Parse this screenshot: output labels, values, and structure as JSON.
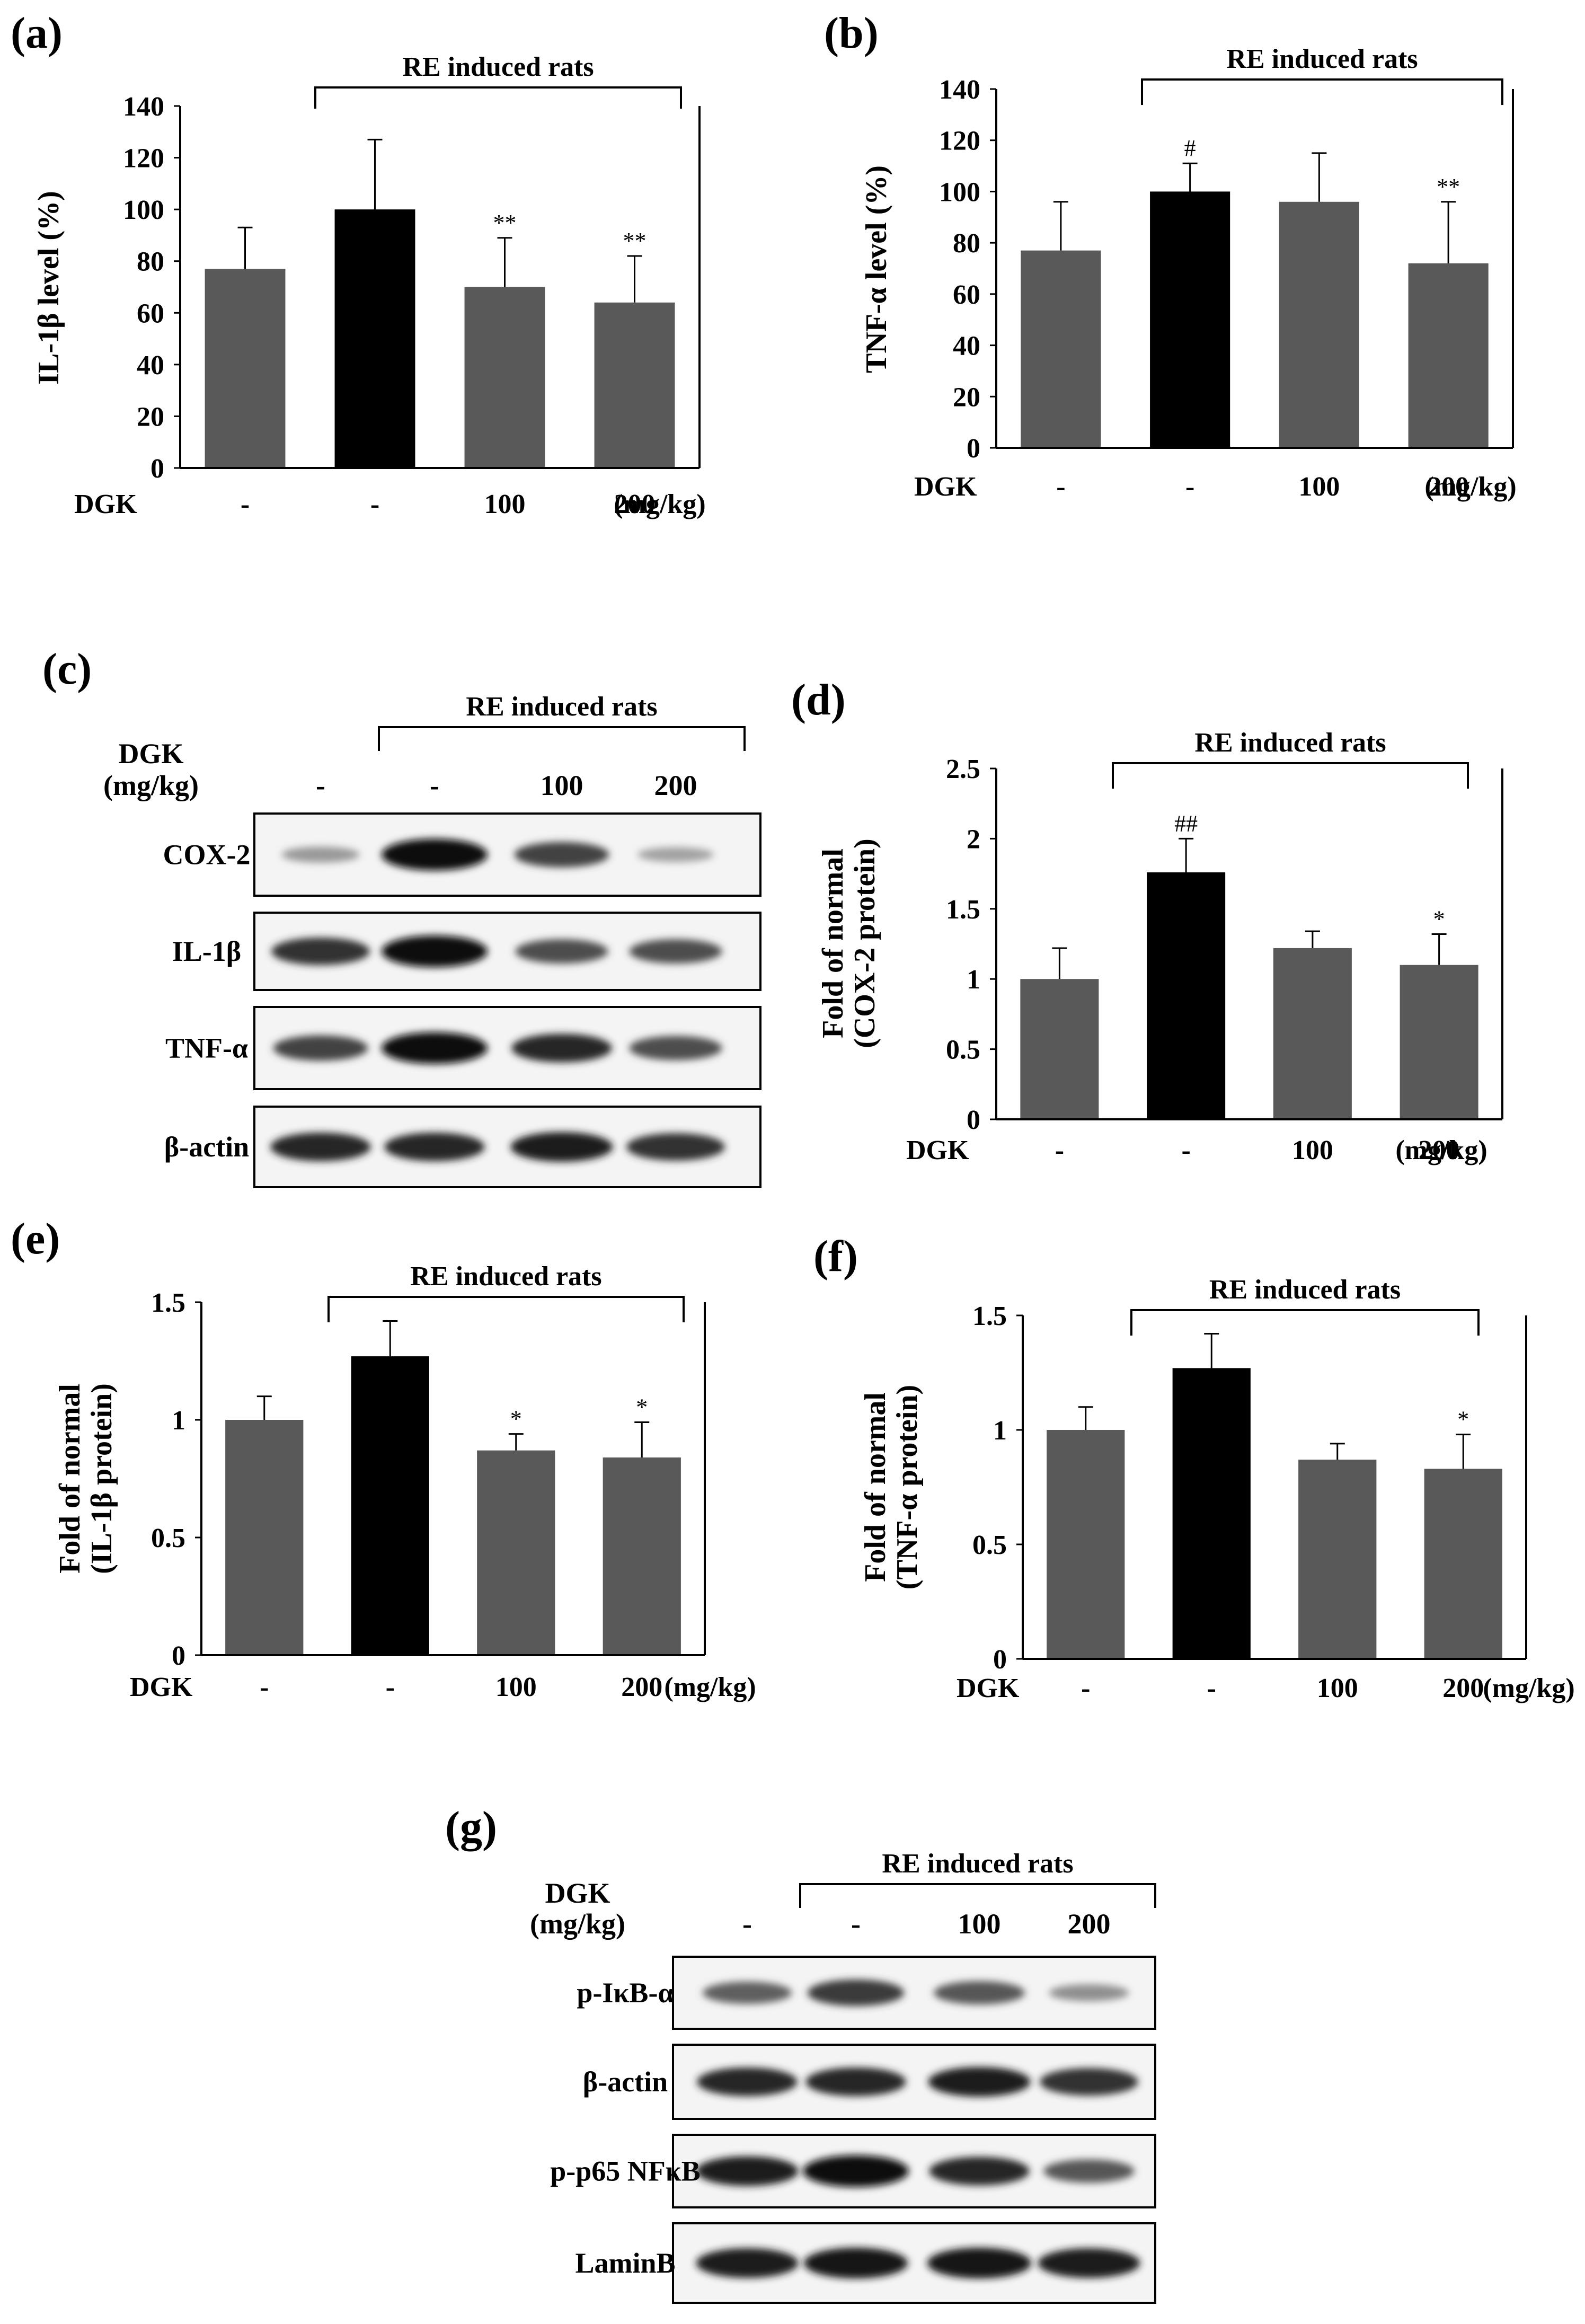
{
  "colors": {
    "control": "#595959",
    "model": "#000000",
    "frame": "#000000"
  },
  "chart_data": [
    {
      "panel": "(a)",
      "type": "bar",
      "ylabel": "IL-1β level (%)",
      "ylim": [
        0,
        140
      ],
      "yticks": [
        0,
        20,
        40,
        60,
        80,
        100,
        120,
        140
      ],
      "group_label": "DGK",
      "unit": "(mg/kg)",
      "categories": [
        "-",
        "-",
        "100",
        "200"
      ],
      "values": [
        77,
        100,
        70,
        64
      ],
      "errors": [
        16,
        27,
        19,
        18
      ],
      "significance": [
        "",
        "",
        "**",
        "**"
      ],
      "bracket_label": "RE induced rats"
    },
    {
      "panel": "(b)",
      "type": "bar",
      "ylabel": "TNF-α level (%)",
      "ylim": [
        0,
        140
      ],
      "yticks": [
        0,
        20,
        40,
        60,
        80,
        100,
        120,
        140
      ],
      "group_label": "DGK",
      "unit": "(mg/kg)",
      "categories": [
        "-",
        "-",
        "100",
        "200"
      ],
      "values": [
        77,
        100,
        96,
        72
      ],
      "errors": [
        19,
        11,
        19,
        24
      ],
      "significance": [
        "",
        "#",
        "",
        "**"
      ],
      "bracket_label": "RE induced rats"
    },
    {
      "panel": "(d)",
      "type": "bar",
      "ylabel": "Fold of normal (COX-2 protein)",
      "ylim": [
        0,
        2.5
      ],
      "yticks": [
        0,
        0.5,
        1,
        1.5,
        2,
        2.5
      ],
      "group_label": "DGK",
      "unit": "(mg/kg)",
      "categories": [
        "-",
        "-",
        "100",
        "200"
      ],
      "values": [
        1.0,
        1.76,
        1.22,
        1.1
      ],
      "errors": [
        0.22,
        0.24,
        0.12,
        0.22
      ],
      "significance": [
        "",
        "##",
        "",
        "*"
      ],
      "bracket_label": "RE induced rats"
    },
    {
      "panel": "(e)",
      "type": "bar",
      "ylabel": "Fold of normal (IL-1β protein)",
      "ylim": [
        0,
        1.5
      ],
      "yticks": [
        0,
        0.5,
        1,
        1.5
      ],
      "group_label": "DGK",
      "unit": "(mg/kg)",
      "categories": [
        "-",
        "-",
        "100",
        "200"
      ],
      "values": [
        1.0,
        1.27,
        0.87,
        0.84
      ],
      "errors": [
        0.1,
        0.15,
        0.07,
        0.15
      ],
      "significance": [
        "",
        "",
        "*",
        "*"
      ],
      "bracket_label": "RE induced rats"
    },
    {
      "panel": "(f)",
      "type": "bar",
      "ylabel": "Fold of normal (TNF-α protein)",
      "ylim": [
        0,
        1.5
      ],
      "yticks": [
        0,
        0.5,
        1,
        1.5
      ],
      "group_label": "DGK",
      "unit": "(mg/kg)",
      "categories": [
        "-",
        "-",
        "100",
        "200"
      ],
      "values": [
        1.0,
        1.27,
        0.87,
        0.83
      ],
      "errors": [
        0.1,
        0.15,
        0.07,
        0.15
      ],
      "significance": [
        "",
        "",
        "",
        "*"
      ],
      "bracket_label": "RE induced rats"
    }
  ],
  "blots": [
    {
      "panel": "(c)",
      "bracket_label": "RE induced rats",
      "dgk_label": "DGK",
      "unit_label": "(mg/kg)",
      "lanes": [
        "-",
        "-",
        "100",
        "200"
      ],
      "rows": [
        {
          "label": "COX-2",
          "intensity": [
            0.25,
            1.0,
            0.7,
            0.2
          ]
        },
        {
          "label": "IL-1β",
          "intensity": [
            0.8,
            1.0,
            0.65,
            0.65
          ]
        },
        {
          "label": "TNF-α",
          "intensity": [
            0.7,
            1.0,
            0.85,
            0.65
          ]
        },
        {
          "label": "β-actin",
          "intensity": [
            0.85,
            0.85,
            0.9,
            0.8
          ]
        }
      ]
    },
    {
      "panel": "(g)",
      "bracket_label": "RE induced rats",
      "dgk_label": "DGK",
      "unit_label": "(mg/kg)",
      "lanes": [
        "-",
        "-",
        "100",
        "200"
      ],
      "rows": [
        {
          "label": "p-IκB-α",
          "intensity": [
            0.55,
            0.75,
            0.6,
            0.3
          ]
        },
        {
          "label": "β-actin",
          "intensity": [
            0.85,
            0.85,
            0.9,
            0.8
          ]
        },
        {
          "label": "p-p65 NFκB",
          "intensity": [
            0.9,
            1.0,
            0.85,
            0.6
          ]
        },
        {
          "label": "LaminB",
          "intensity": [
            0.9,
            0.95,
            0.95,
            0.9
          ]
        }
      ]
    }
  ]
}
